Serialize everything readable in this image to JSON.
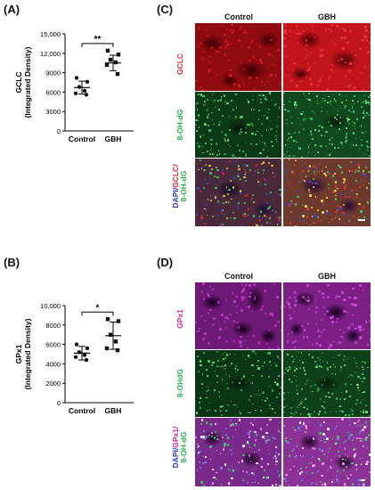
{
  "panels": {
    "A": {
      "letter": "(A)"
    },
    "B": {
      "letter": "(B)"
    },
    "C": {
      "letter": "(C)",
      "col_labels": [
        "Control",
        "GBH"
      ],
      "rows": [
        {
          "label": "GCLC",
          "color": "#e5202a"
        },
        {
          "label": "8-OH-dG",
          "color": "#22b14c"
        },
        {
          "label_parts": [
            {
              "text": "DAPI/",
              "color": "#2436c8"
            },
            {
              "text": "GCLC/",
              "color": "#e5202a"
            },
            {
              "text": "8-OH-dG",
              "color": "#22b14c"
            }
          ]
        }
      ]
    },
    "D": {
      "letter": "(D)",
      "col_labels": [
        "Control",
        "GBH"
      ],
      "rows": [
        {
          "label": "GPx1",
          "color": "#d6259a"
        },
        {
          "label": "8-OHdG",
          "color": "#22b14c"
        },
        {
          "label_parts": [
            {
              "text": "DAPI/",
              "color": "#2436c8"
            },
            {
              "text": "GPx1/",
              "color": "#d6259a"
            },
            {
              "text": "8-OH-dG",
              "color": "#22b14c"
            }
          ]
        }
      ]
    }
  },
  "chart_data": [
    {
      "type": "scatter",
      "panel": "A",
      "ylabel": [
        "GCLC",
        "(Integrated Density)"
      ],
      "categories": [
        "Control",
        "GBH"
      ],
      "ylim": [
        0,
        15000
      ],
      "yticks": [
        0,
        3000,
        6000,
        9000,
        12000,
        15000
      ],
      "ytick_labels": [
        "0",
        "3000",
        "6000",
        "9000",
        "12,000",
        "15,000"
      ],
      "series": [
        {
          "category": "Control",
          "points": [
            8200,
            7600,
            6800,
            6200,
            5800,
            5600
          ],
          "mean": 6700,
          "sd": 1000
        },
        {
          "category": "GBH",
          "points": [
            12400,
            11800,
            11000,
            10600,
            10200,
            8800
          ],
          "mean": 10500,
          "sd": 1200
        }
      ],
      "significance": "**"
    },
    {
      "type": "scatter",
      "panel": "B",
      "ylabel": [
        "GPx1",
        "(Integrated Density)"
      ],
      "categories": [
        "Control",
        "GBH"
      ],
      "ylim": [
        0,
        10000
      ],
      "yticks": [
        0,
        2000,
        4000,
        6000,
        8000,
        10000
      ],
      "ytick_labels": [
        "0",
        "2000",
        "4000",
        "6000",
        "8000",
        "10,000"
      ],
      "series": [
        {
          "category": "Control",
          "points": [
            6000,
            5600,
            5200,
            4900,
            4700,
            4400
          ],
          "mean": 5100,
          "sd": 700
        },
        {
          "category": "GBH",
          "points": [
            8600,
            8400,
            7000,
            6300,
            5600,
            5400
          ],
          "mean": 6900,
          "sd": 1400
        }
      ],
      "significance": "*"
    }
  ]
}
